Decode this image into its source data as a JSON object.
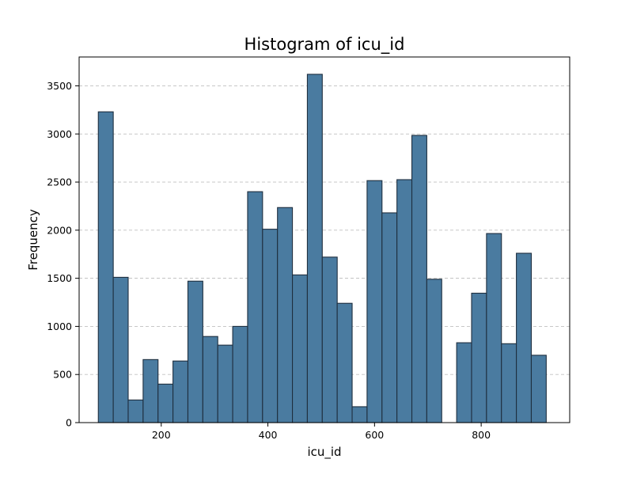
{
  "chart_data": {
    "type": "bar",
    "subtype": "histogram",
    "title": "Histogram of icu_id",
    "xlabel": "icu_id",
    "ylabel": "Frequency",
    "xlim": [
      46,
      966
    ],
    "ylim": [
      0,
      3800
    ],
    "x_ticks": [
      200,
      400,
      600,
      800
    ],
    "y_ticks": [
      0,
      500,
      1000,
      1500,
      2000,
      2500,
      3000,
      3500
    ],
    "grid": {
      "axis": "y",
      "style": "dashed"
    },
    "legend": null,
    "bar_color": "#4a7ba0",
    "edge_color": "#1f2f3f",
    "bins": [
      {
        "start": 82,
        "end": 110,
        "value": 3230
      },
      {
        "start": 110,
        "end": 138,
        "value": 1510
      },
      {
        "start": 138,
        "end": 166,
        "value": 235
      },
      {
        "start": 166,
        "end": 194,
        "value": 655
      },
      {
        "start": 194,
        "end": 222,
        "value": 400
      },
      {
        "start": 222,
        "end": 250,
        "value": 640
      },
      {
        "start": 250,
        "end": 278,
        "value": 1470
      },
      {
        "start": 278,
        "end": 306,
        "value": 895
      },
      {
        "start": 306,
        "end": 334,
        "value": 805
      },
      {
        "start": 334,
        "end": 362,
        "value": 1000
      },
      {
        "start": 362,
        "end": 390,
        "value": 2400
      },
      {
        "start": 390,
        "end": 418,
        "value": 2010
      },
      {
        "start": 418,
        "end": 446,
        "value": 2235
      },
      {
        "start": 446,
        "end": 474,
        "value": 1535
      },
      {
        "start": 474,
        "end": 502,
        "value": 3620
      },
      {
        "start": 502,
        "end": 530,
        "value": 1720
      },
      {
        "start": 530,
        "end": 558,
        "value": 1240
      },
      {
        "start": 558,
        "end": 586,
        "value": 165
      },
      {
        "start": 586,
        "end": 614,
        "value": 2515
      },
      {
        "start": 614,
        "end": 642,
        "value": 2180
      },
      {
        "start": 642,
        "end": 670,
        "value": 2525
      },
      {
        "start": 670,
        "end": 698,
        "value": 2985
      },
      {
        "start": 698,
        "end": 726,
        "value": 1490
      },
      {
        "start": 726,
        "end": 754,
        "value": 0
      },
      {
        "start": 754,
        "end": 782,
        "value": 830
      },
      {
        "start": 782,
        "end": 810,
        "value": 1345
      },
      {
        "start": 810,
        "end": 838,
        "value": 1965
      },
      {
        "start": 838,
        "end": 866,
        "value": 820
      },
      {
        "start": 866,
        "end": 894,
        "value": 1760
      },
      {
        "start": 894,
        "end": 922,
        "value": 700
      }
    ]
  }
}
